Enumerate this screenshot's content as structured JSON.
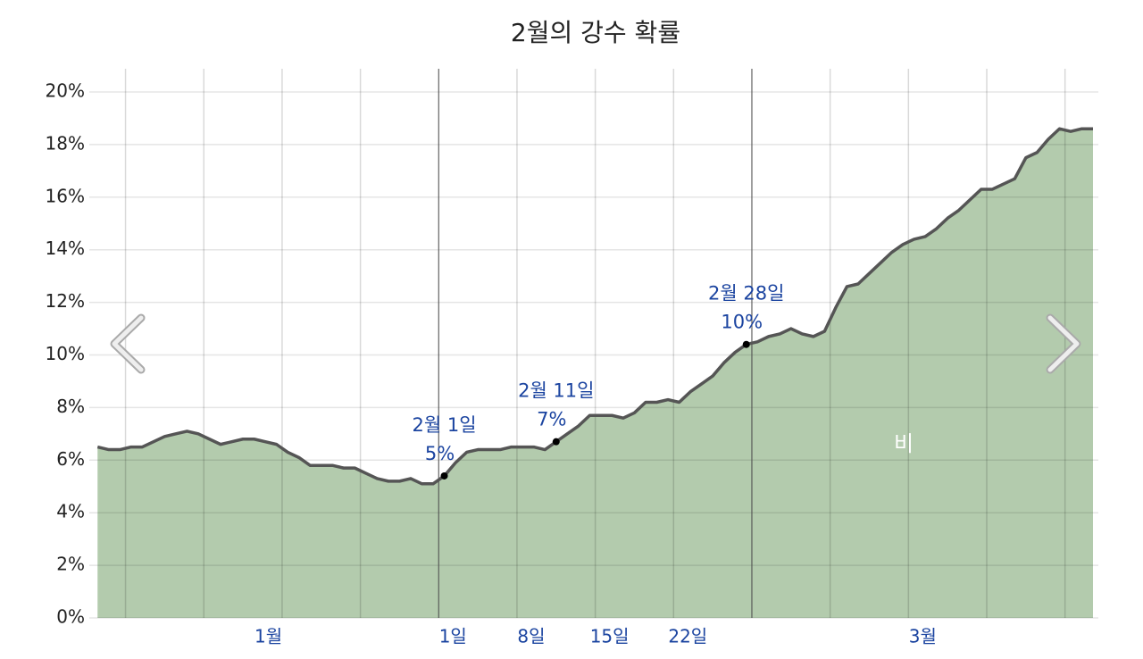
{
  "chart_data": {
    "type": "area",
    "title": "2월의 강수 확률",
    "x": [
      1.5,
      2.5,
      3.5,
      4.5,
      5.5,
      6.5,
      7.5,
      8.5,
      9.5,
      10.5,
      11.5,
      12.5,
      13.5,
      14.5,
      15.5,
      16.5,
      17.5,
      18.5,
      19.5,
      20.5,
      21.5,
      22.5,
      23.5,
      24.5,
      25.5,
      26.5,
      27.5,
      28.5,
      29.5,
      30.5,
      31.5,
      32.5,
      33.5,
      34.5,
      35.5,
      36.5,
      37.5,
      38.5,
      39.5,
      40.5,
      41.5,
      42.5,
      43.5,
      44.5,
      45.5,
      46.5,
      47.5,
      48.5,
      49.5,
      50.5,
      51.5,
      52.5,
      53.5,
      54.5,
      55.5,
      56.5,
      57.5,
      58.5,
      59.5,
      60.5,
      61.5,
      62.5,
      63.5,
      64.5,
      65.5,
      66.5,
      67.5,
      68.5,
      69.5,
      70.5,
      71.5,
      72.5,
      73.5,
      74.5,
      75.5,
      76.5,
      77.5,
      78.5,
      79.5,
      80.5,
      81.5,
      82.5,
      83.5,
      84.5,
      85.5,
      86.5,
      87.5,
      88.5,
      89.5,
      90.5
    ],
    "series": [
      {
        "name": "비",
        "color": "#b3cbad",
        "line_color": "#555555",
        "values": [
          6.5,
          6.4,
          6.4,
          6.5,
          6.5,
          6.7,
          6.9,
          7.0,
          7.1,
          7.0,
          6.8,
          6.6,
          6.7,
          6.8,
          6.8,
          6.7,
          6.6,
          6.3,
          6.1,
          5.8,
          5.8,
          5.8,
          5.7,
          5.7,
          5.5,
          5.3,
          5.2,
          5.2,
          5.3,
          5.1,
          5.1,
          5.4,
          5.9,
          6.3,
          6.4,
          6.4,
          6.4,
          6.5,
          6.5,
          6.5,
          6.4,
          6.7,
          7.0,
          7.3,
          7.7,
          7.7,
          7.7,
          7.6,
          7.8,
          8.2,
          8.2,
          8.3,
          8.2,
          8.6,
          8.9,
          9.2,
          9.7,
          10.1,
          10.4,
          10.5,
          10.7,
          10.8,
          11.0,
          10.8,
          10.7,
          10.9,
          11.8,
          12.6,
          12.7,
          13.1,
          13.5,
          13.9,
          14.2,
          14.4,
          14.5,
          14.8,
          15.2,
          15.5,
          15.9,
          16.3,
          16.3,
          16.5,
          16.7,
          17.5,
          17.7,
          18.2,
          18.6,
          18.5,
          18.6,
          18.6
        ]
      }
    ],
    "xlim": [
      1.4,
      90.5
    ],
    "ylim": [
      0,
      20
    ],
    "yticks": [
      {
        "value": 0,
        "label": "0%"
      },
      {
        "value": 2,
        "label": "2%"
      },
      {
        "value": 4,
        "label": "4%"
      },
      {
        "value": 6,
        "label": "6%"
      },
      {
        "value": 8,
        "label": "8%"
      },
      {
        "value": 10,
        "label": "10%"
      },
      {
        "value": 12,
        "label": "12%"
      },
      {
        "value": 14,
        "label": "14%"
      },
      {
        "value": 16,
        "label": "16%"
      },
      {
        "value": 18,
        "label": "18%"
      },
      {
        "value": 20,
        "label": "20%"
      }
    ],
    "xticks": [
      {
        "value": 15.5,
        "label": "1월"
      },
      {
        "value": 32,
        "label": "1일"
      },
      {
        "value": 39,
        "label": "8일"
      },
      {
        "value": 46,
        "label": "15일"
      },
      {
        "value": 53,
        "label": "22일"
      },
      {
        "value": 74,
        "label": "3월"
      }
    ],
    "xgrid": [
      4,
      11,
      18,
      25,
      32,
      39,
      46,
      53,
      60,
      67,
      74,
      81,
      88
    ],
    "month_lines": [
      32,
      60
    ],
    "grid": true,
    "annotations": [
      {
        "x": 32.5,
        "label": "2월 1일",
        "value_label": "5%"
      },
      {
        "x": 42.5,
        "label": "2월 11일",
        "value_label": "7%"
      },
      {
        "x": 59.5,
        "label": "2월 28일",
        "value_label": "10%"
      }
    ]
  }
}
